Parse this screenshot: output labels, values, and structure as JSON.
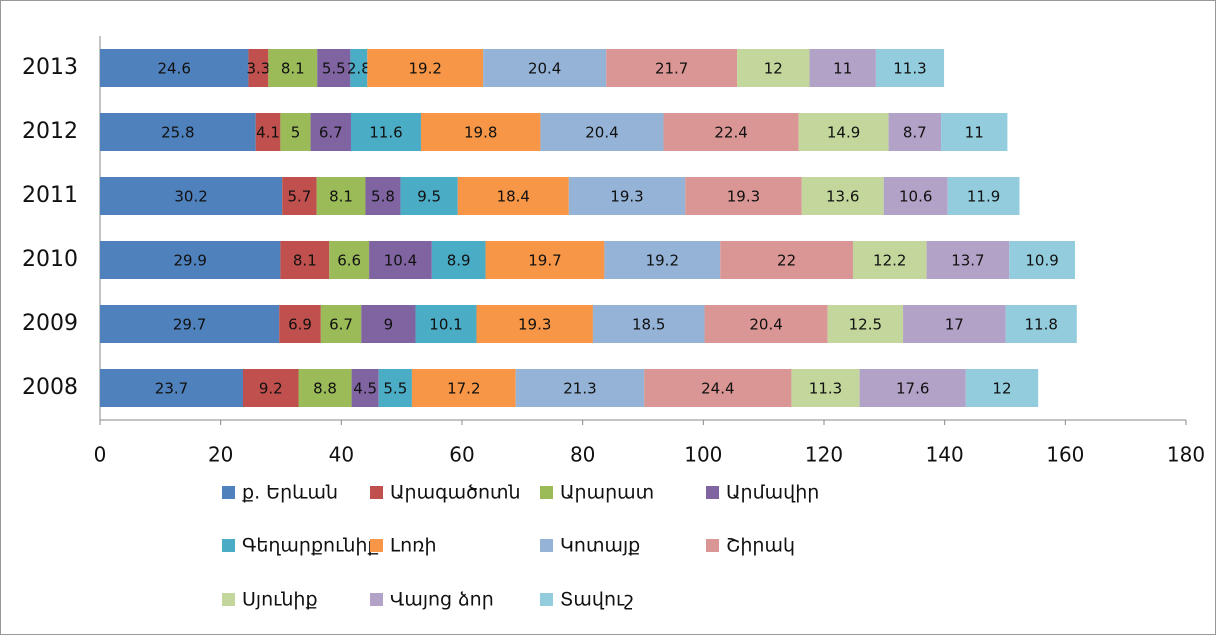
{
  "chart_data": {
    "type": "stacked-bar-horizontal",
    "categories": [
      "2013",
      "2012",
      "2011",
      "2010",
      "2009",
      "2008"
    ],
    "series": [
      {
        "name": "ք. Երևան",
        "color": "#4f81bd",
        "values": [
          24.6,
          25.8,
          30.2,
          29.9,
          29.7,
          23.7
        ]
      },
      {
        "name": "Արագածոտն",
        "color": "#c0504d",
        "values": [
          3.3,
          4.1,
          5.7,
          8.1,
          6.9,
          9.2
        ]
      },
      {
        "name": "Արարատ",
        "color": "#9bbb59",
        "values": [
          8.1,
          5,
          8.1,
          6.6,
          6.7,
          8.8
        ]
      },
      {
        "name": "Արմավիր",
        "color": "#8064a2",
        "values": [
          5.5,
          6.7,
          5.8,
          10.4,
          9,
          4.5
        ]
      },
      {
        "name": "Գեղարքունիք",
        "color": "#4bacc6",
        "values": [
          2.8,
          11.6,
          9.5,
          8.9,
          10.1,
          5.5
        ]
      },
      {
        "name": "Լոռի",
        "color": "#f79646",
        "values": [
          19.2,
          19.8,
          18.4,
          19.7,
          19.3,
          17.2
        ]
      },
      {
        "name": "Կոտայք",
        "color": "#95b3d7",
        "values": [
          20.4,
          20.4,
          19.3,
          19.2,
          18.5,
          21.3
        ]
      },
      {
        "name": "Շիրակ",
        "color": "#d99694",
        "values": [
          21.7,
          22.4,
          19.3,
          22,
          20.4,
          24.4
        ]
      },
      {
        "name": "Սյունիք",
        "color": "#c3d69b",
        "values": [
          12,
          14.9,
          13.6,
          12.2,
          12.5,
          11.3
        ]
      },
      {
        "name": "Վայոց ձոր",
        "color": "#b3a2c7",
        "values": [
          11,
          8.7,
          10.6,
          13.7,
          17,
          17.6
        ]
      },
      {
        "name": "Տավուշ",
        "color": "#93cddd",
        "values": [
          11.3,
          11,
          11.9,
          10.9,
          11.8,
          12
        ]
      }
    ],
    "xlim": [
      0,
      180
    ],
    "xticks": [
      0,
      20,
      40,
      60,
      80,
      100,
      120,
      140,
      160,
      180
    ]
  }
}
